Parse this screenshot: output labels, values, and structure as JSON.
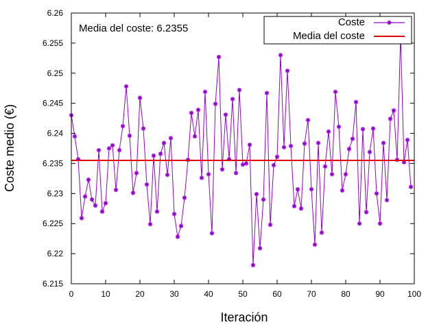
{
  "chart_data": {
    "type": "line",
    "title": "",
    "xlabel": "Iteración",
    "ylabel": "Coste medio (€)",
    "xlim": [
      0,
      100
    ],
    "ylim": [
      6.215,
      6.26
    ],
    "x_ticks": [
      0,
      10,
      20,
      30,
      40,
      50,
      60,
      70,
      80,
      90,
      100
    ],
    "y_ticks": [
      6.215,
      6.22,
      6.225,
      6.23,
      6.235,
      6.24,
      6.245,
      6.25,
      6.255,
      6.26
    ],
    "x_tick_labels": [
      "0",
      "10",
      "20",
      "30",
      "40",
      "50",
      "60",
      "70",
      "80",
      "90",
      "100"
    ],
    "y_tick_labels": [
      "6.215",
      "6.22",
      "6.225",
      "6.23",
      "6.235",
      "6.24",
      "6.245",
      "6.25",
      "6.255",
      "6.26"
    ],
    "grid": false,
    "legend_position": "top-right",
    "annotation": "Media del coste: 6.2355",
    "series": [
      {
        "name": "Coste",
        "color": "#9400d3",
        "marker": "asterisk",
        "x": [
          0,
          1,
          2,
          3,
          4,
          5,
          6,
          7,
          8,
          9,
          10,
          11,
          12,
          13,
          14,
          15,
          16,
          17,
          18,
          19,
          20,
          21,
          22,
          23,
          24,
          25,
          26,
          27,
          28,
          29,
          30,
          31,
          32,
          33,
          34,
          35,
          36,
          37,
          38,
          39,
          40,
          41,
          42,
          43,
          44,
          45,
          46,
          47,
          48,
          49,
          50,
          51,
          52,
          53,
          54,
          55,
          56,
          57,
          58,
          59,
          60,
          61,
          62,
          63,
          64,
          65,
          66,
          67,
          68,
          69,
          70,
          71,
          72,
          73,
          74,
          75,
          76,
          77,
          78,
          79,
          80,
          81,
          82,
          83,
          84,
          85,
          86,
          87,
          88,
          89,
          90,
          91,
          92,
          93,
          94,
          95,
          96,
          97,
          98,
          99
        ],
        "values": [
          6.243,
          6.2395,
          6.2357,
          6.2259,
          6.2295,
          6.2323,
          6.229,
          6.228,
          6.2372,
          6.227,
          6.2284,
          6.2375,
          6.238,
          6.2306,
          6.2372,
          6.2412,
          6.2478,
          6.2396,
          6.2301,
          6.2334,
          6.2459,
          6.2408,
          6.2315,
          6.2249,
          6.2363,
          6.227,
          6.2366,
          6.2384,
          6.2331,
          6.2392,
          6.2266,
          6.2228,
          6.2246,
          6.2293,
          6.2356,
          6.2434,
          6.2395,
          6.2439,
          6.2326,
          6.2469,
          6.2332,
          6.2234,
          6.2449,
          6.2527,
          6.234,
          6.2431,
          6.2357,
          6.2457,
          6.2334,
          6.2472,
          6.2348,
          6.235,
          6.2381,
          6.2181,
          6.2299,
          6.2209,
          6.229,
          6.2467,
          6.2248,
          6.2347,
          6.2361,
          6.253,
          6.2377,
          6.2504,
          6.2379,
          6.2279,
          6.2307,
          6.2275,
          6.2383,
          6.2422,
          6.2307,
          6.2215,
          6.2384,
          6.2235,
          6.2345,
          6.2403,
          6.2332,
          6.2469,
          6.2411,
          6.2305,
          6.2332,
          6.2374,
          6.2391,
          6.2452,
          6.225,
          6.2407,
          6.2269,
          6.2369,
          6.2408,
          6.23,
          6.225,
          6.2384,
          6.2289,
          6.2424,
          6.2438,
          6.2356,
          6.2563,
          6.2352,
          6.2389,
          6.2311
        ]
      },
      {
        "name": "Media del coste",
        "color": "#e00000",
        "marker": "none",
        "constant": 6.2355
      }
    ]
  }
}
